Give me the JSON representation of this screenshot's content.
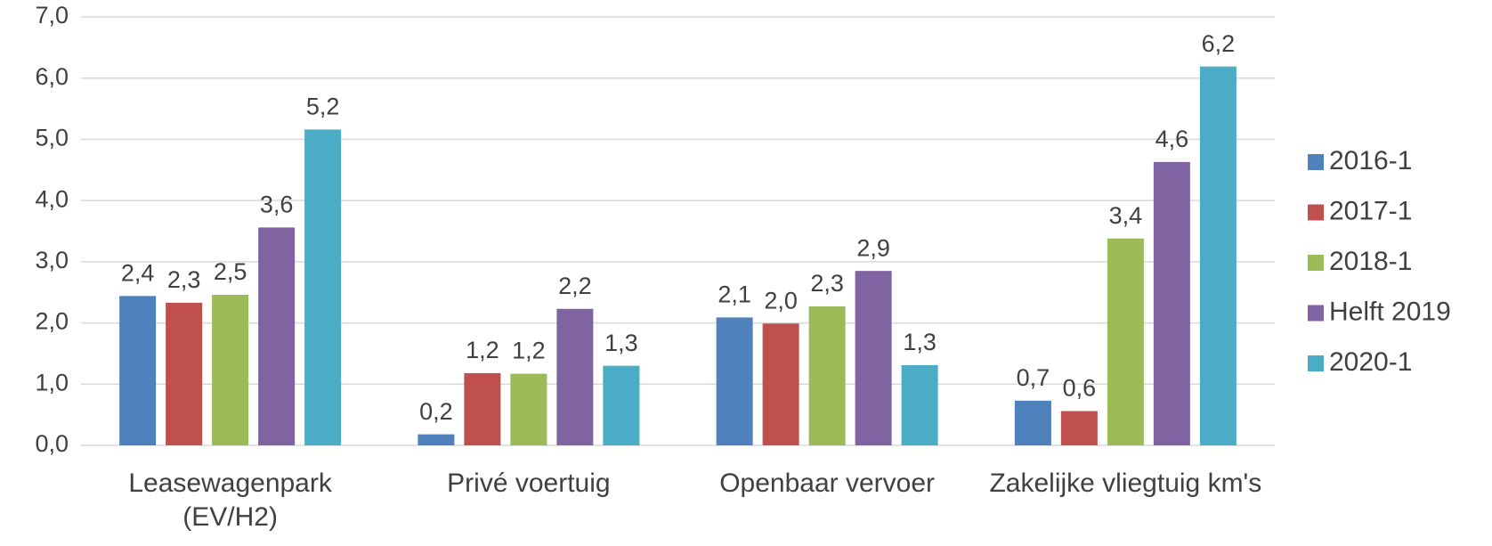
{
  "chart_data": {
    "type": "bar",
    "categories": [
      "Leasewagenpark (EV/H2)",
      "Privé voertuig",
      "Openbaar vervoer",
      "Zakelijke vliegtuig km's"
    ],
    "series": [
      {
        "name": "2016-1",
        "color": "#4f81bd",
        "values": [
          2.44,
          0.18,
          2.09,
          0.73
        ],
        "value_labels": [
          "2,4",
          "0,2",
          "2,1",
          "0,7"
        ]
      },
      {
        "name": "2017-1",
        "color": "#c0504d",
        "values": [
          2.33,
          1.18,
          1.99,
          0.56
        ],
        "value_labels": [
          "2,3",
          "1,2",
          "2,0",
          "0,6"
        ]
      },
      {
        "name": "2018-1",
        "color": "#9bbb59",
        "values": [
          2.46,
          1.17,
          2.27,
          3.38
        ],
        "value_labels": [
          "2,5",
          "1,2",
          "2,3",
          "3,4"
        ]
      },
      {
        "name": "Helft 2019",
        "color": "#8064a2",
        "values": [
          3.56,
          2.23,
          2.85,
          4.63
        ],
        "value_labels": [
          "3,6",
          "2,2",
          "2,9",
          "4,6"
        ]
      },
      {
        "name": "2020-1",
        "color": "#4bacc6",
        "values": [
          5.16,
          1.3,
          1.31,
          6.19
        ],
        "value_labels": [
          "5,2",
          "1,3",
          "1,3",
          "6,2"
        ]
      }
    ],
    "ylim": [
      0,
      7
    ],
    "yticks": [
      {
        "value": 0,
        "label": "0,0"
      },
      {
        "value": 1,
        "label": "1,0"
      },
      {
        "value": 2,
        "label": "2,0"
      },
      {
        "value": 3,
        "label": "3,0"
      },
      {
        "value": 4,
        "label": "4,0"
      },
      {
        "value": 5,
        "label": "5,0"
      },
      {
        "value": 6,
        "label": "6,0"
      },
      {
        "value": 7,
        "label": "7,0"
      }
    ],
    "grid": true,
    "legend": "right"
  }
}
